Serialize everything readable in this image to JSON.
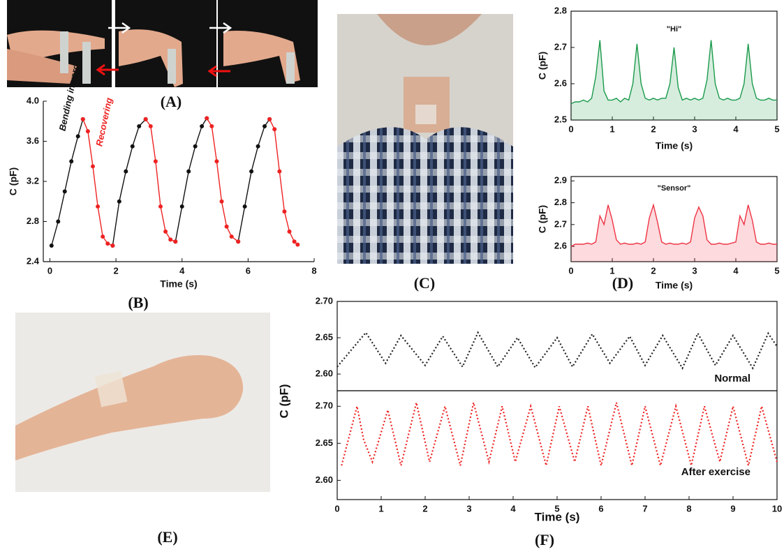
{
  "panel_labels": [
    "(A)",
    "(B)",
    "(C)",
    "(D)",
    "(E)",
    "(F)"
  ],
  "chart_data": [
    {
      "type": "line",
      "xlabel": "Time (s)",
      "ylabel": "C (pF)",
      "markers": true,
      "xlim": [
        -0.2,
        8
      ],
      "xticks": [
        0,
        2,
        4,
        6,
        8
      ],
      "ylim": [
        2.4,
        4.0
      ],
      "yticks": [
        2.4,
        2.8,
        3.2,
        3.6,
        {
          "value": 4.0,
          "label": "4.0"
        }
      ],
      "series": [
        {
          "name": "Bending inward",
          "color": "#111111",
          "x": [
            0.05,
            0.25,
            0.45,
            0.65,
            0.85,
            1.0,
            null,
            1.9,
            2.1,
            2.3,
            2.5,
            2.7,
            2.9,
            null,
            3.8,
            4.0,
            4.2,
            4.4,
            4.6,
            4.75,
            null,
            5.7,
            5.9,
            6.1,
            6.3,
            6.5,
            6.65
          ],
          "values": [
            2.56,
            2.8,
            3.1,
            3.4,
            3.65,
            3.82,
            null,
            2.56,
            3.0,
            3.3,
            3.55,
            3.75,
            3.82,
            null,
            2.6,
            2.95,
            3.3,
            3.55,
            3.75,
            3.83,
            null,
            2.6,
            2.95,
            3.3,
            3.55,
            3.75,
            3.82
          ]
        },
        {
          "name": "Recovering",
          "color": "#ee2222",
          "x": [
            1.0,
            1.15,
            1.3,
            1.45,
            1.6,
            1.75,
            1.9,
            null,
            2.9,
            3.05,
            3.2,
            3.35,
            3.5,
            3.65,
            3.8,
            null,
            4.75,
            4.9,
            5.05,
            5.2,
            5.35,
            5.5,
            5.7,
            null,
            6.65,
            6.8,
            6.95,
            7.1,
            7.25,
            7.4,
            7.5
          ],
          "values": [
            3.82,
            3.7,
            3.35,
            2.95,
            2.65,
            2.58,
            2.56,
            null,
            3.82,
            3.75,
            3.4,
            2.95,
            2.7,
            2.62,
            2.6,
            null,
            3.83,
            3.75,
            3.4,
            3.0,
            2.75,
            2.65,
            2.6,
            null,
            3.82,
            3.72,
            3.3,
            2.9,
            2.7,
            2.6,
            2.57
          ]
        }
      ]
    },
    {
      "type": "line",
      "title": "\"Hi\"",
      "xlabel": "Time (s)",
      "ylabel": "C (pF)",
      "fill_area": true,
      "xlim": [
        0,
        5
      ],
      "xticks": [
        0,
        1,
        2,
        3,
        4,
        5
      ],
      "ylim": [
        2.5,
        2.8
      ],
      "yticks": [
        2.5,
        2.6,
        2.7,
        2.8
      ],
      "series": [
        {
          "color": "#1a9a4a",
          "x": [
            0,
            0.1,
            0.2,
            0.3,
            0.4,
            0.5,
            0.6,
            0.7,
            0.8,
            0.9,
            1.0,
            1.1,
            1.2,
            1.3,
            1.4,
            1.5,
            1.6,
            1.7,
            1.8,
            1.9,
            2.0,
            2.1,
            2.2,
            2.3,
            2.4,
            2.5,
            2.6,
            2.7,
            2.8,
            2.9,
            3.0,
            3.1,
            3.2,
            3.3,
            3.4,
            3.5,
            3.6,
            3.7,
            3.8,
            3.9,
            4.0,
            4.1,
            4.2,
            4.3,
            4.4,
            4.5,
            4.6,
            4.7,
            4.8,
            4.9,
            5.0
          ],
          "values": [
            2.545,
            2.55,
            2.55,
            2.555,
            2.55,
            2.56,
            2.62,
            2.72,
            2.58,
            2.555,
            2.555,
            2.56,
            2.55,
            2.56,
            2.555,
            2.6,
            2.71,
            2.6,
            2.56,
            2.555,
            2.56,
            2.555,
            2.56,
            2.56,
            2.6,
            2.7,
            2.59,
            2.555,
            2.56,
            2.555,
            2.56,
            2.555,
            2.56,
            2.61,
            2.72,
            2.6,
            2.56,
            2.555,
            2.56,
            2.555,
            2.555,
            2.56,
            2.6,
            2.71,
            2.6,
            2.56,
            2.555,
            2.555,
            2.56,
            2.555,
            2.555
          ]
        }
      ]
    },
    {
      "type": "line",
      "title": "\"Sensor\"",
      "xlabel": "Time (s)",
      "ylabel": "C (pF)",
      "fill_area": true,
      "xlim": [
        0,
        5
      ],
      "xticks": [
        0,
        1,
        2,
        3,
        4,
        5
      ],
      "ylim": [
        2.53,
        2.92
      ],
      "yticks": [
        2.6,
        2.7,
        2.8,
        2.9
      ],
      "series": [
        {
          "color": "#ee3344",
          "x": [
            0,
            0.1,
            0.2,
            0.3,
            0.4,
            0.5,
            0.6,
            0.7,
            0.8,
            0.9,
            1.0,
            1.1,
            1.2,
            1.3,
            1.4,
            1.5,
            1.6,
            1.7,
            1.8,
            1.9,
            2.0,
            2.1,
            2.2,
            2.3,
            2.4,
            2.5,
            2.6,
            2.7,
            2.8,
            2.9,
            3.0,
            3.1,
            3.2,
            3.3,
            3.4,
            3.5,
            3.6,
            3.7,
            3.8,
            3.9,
            4.0,
            4.1,
            4.2,
            4.3,
            4.4,
            4.5,
            4.6,
            4.7,
            4.8,
            4.9,
            5.0
          ],
          "values": [
            2.6,
            2.61,
            2.61,
            2.61,
            2.615,
            2.61,
            2.62,
            2.74,
            2.7,
            2.79,
            2.72,
            2.63,
            2.61,
            2.615,
            2.61,
            2.61,
            2.615,
            2.61,
            2.62,
            2.73,
            2.79,
            2.71,
            2.62,
            2.61,
            2.615,
            2.61,
            2.61,
            2.615,
            2.61,
            2.62,
            2.73,
            2.78,
            2.74,
            2.63,
            2.61,
            2.61,
            2.615,
            2.61,
            2.61,
            2.615,
            2.62,
            2.74,
            2.7,
            2.79,
            2.72,
            2.62,
            2.61,
            2.61,
            2.615,
            2.61,
            2.61
          ]
        }
      ]
    },
    {
      "type": "line",
      "ylabel": "C (pF)",
      "annotation": "Normal",
      "line_style": "dotted",
      "xlim": [
        0,
        10
      ],
      "ylim": [
        2.577,
        2.7
      ],
      "yticks": [
        {
          "value": 2.6,
          "label": "2.60"
        },
        {
          "value": 2.65,
          "label": "2.65"
        },
        {
          "value": 2.7,
          "label": "2.70"
        }
      ],
      "series": [
        {
          "color": "#222222",
          "x": [
            0,
            0.65,
            1.1,
            1.45,
            2.0,
            2.4,
            2.85,
            3.2,
            3.65,
            4.1,
            4.5,
            5.0,
            5.35,
            5.8,
            6.2,
            6.65,
            7.0,
            7.4,
            7.85,
            8.2,
            8.6,
            9.0,
            9.45,
            9.8,
            10
          ],
          "values": [
            2.61,
            2.657,
            2.615,
            2.653,
            2.612,
            2.652,
            2.61,
            2.657,
            2.61,
            2.65,
            2.609,
            2.65,
            2.61,
            2.655,
            2.615,
            2.652,
            2.612,
            2.653,
            2.608,
            2.656,
            2.612,
            2.653,
            2.608,
            2.656,
            2.638
          ]
        }
      ]
    },
    {
      "type": "line",
      "xlabel": "Time (s)",
      "annotation": "After exercise",
      "line_style": "dotted",
      "xlim": [
        0,
        10
      ],
      "xticks": [
        0,
        1,
        2,
        3,
        4,
        5,
        6,
        7,
        8,
        9,
        10
      ],
      "ylim": [
        2.574,
        2.721
      ],
      "yticks": [
        {
          "value": 2.6,
          "label": "2.60"
        },
        {
          "value": 2.65,
          "label": "2.65"
        },
        {
          "value": 2.7,
          "label": "2.70"
        }
      ],
      "series": [
        {
          "color": "#ee2222",
          "x": [
            0.1,
            0.45,
            0.6,
            0.8,
            1.15,
            1.45,
            1.8,
            2.1,
            2.45,
            2.8,
            3.1,
            3.45,
            3.75,
            4.05,
            4.4,
            4.75,
            5.05,
            5.4,
            5.7,
            6.0,
            6.35,
            6.7,
            7.0,
            7.35,
            7.7,
            8.05,
            8.35,
            8.7,
            9.0,
            9.35,
            9.65,
            10.0
          ],
          "values": [
            2.62,
            2.7,
            2.655,
            2.625,
            2.695,
            2.62,
            2.705,
            2.625,
            2.7,
            2.62,
            2.705,
            2.625,
            2.7,
            2.625,
            2.7,
            2.62,
            2.7,
            2.625,
            2.7,
            2.62,
            2.705,
            2.62,
            2.7,
            2.62,
            2.7,
            2.62,
            2.7,
            2.625,
            2.7,
            2.62,
            2.7,
            2.625
          ]
        }
      ]
    }
  ]
}
